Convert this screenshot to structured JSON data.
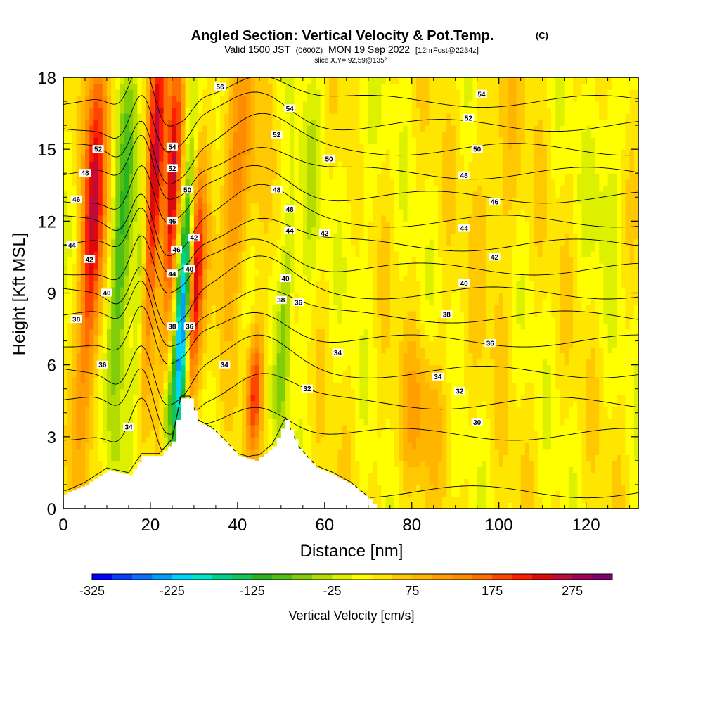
{
  "chart_data": {
    "type": "heatmap",
    "title": "Angled Section: Vertical Velocity & Pot.Temp.",
    "title_units": "(C)",
    "valid_prefix": "Valid 1500 JST",
    "valid_utc": "(0600Z)",
    "valid_date": "MON 19 Sep 2022",
    "valid_fcst": "[12hrFcst@2234z]",
    "slice": "slice X,Y= 92,59@135°",
    "xlabel": "Distance [nm]",
    "ylabel": "Height [Kft MSL]",
    "xlim": [
      0,
      132
    ],
    "ylim": [
      0,
      18
    ],
    "x_ticks": [
      "0",
      "20",
      "40",
      "60",
      "80",
      "100",
      "120"
    ],
    "y_ticks": [
      "0",
      "3",
      "6",
      "9",
      "12",
      "15",
      "18"
    ],
    "grid": false,
    "colorbar": {
      "label": "Vertical Velocity [cm/s]",
      "tick_labels": [
        "-325",
        "-225",
        "-125",
        "-25",
        "75",
        "175",
        "275"
      ],
      "min": -325,
      "max": 325,
      "step": 25,
      "colors": [
        "#0000ff",
        "#0a3cff",
        "#0a6eff",
        "#00a0ff",
        "#00d2ff",
        "#00e6c8",
        "#00d28c",
        "#14c35a",
        "#28b41e",
        "#50be14",
        "#82cd0a",
        "#b4dc00",
        "#dcf000",
        "#ffff00",
        "#ffe600",
        "#ffc800",
        "#ffb400",
        "#ffa000",
        "#ff8c00",
        "#ff6e00",
        "#ff4600",
        "#ff1e00",
        "#dc0a0a",
        "#be0a3c",
        "#a0005a",
        "#82006e"
      ]
    },
    "terrain": [
      {
        "x": 0,
        "h": 0.6
      },
      {
        "x": 5,
        "h": 1.0
      },
      {
        "x": 10,
        "h": 1.6
      },
      {
        "x": 15,
        "h": 1.4
      },
      {
        "x": 18,
        "h": 2.2
      },
      {
        "x": 22,
        "h": 2.2
      },
      {
        "x": 25,
        "h": 2.8
      },
      {
        "x": 27,
        "h": 4.6
      },
      {
        "x": 29,
        "h": 4.6
      },
      {
        "x": 31,
        "h": 3.6
      },
      {
        "x": 34,
        "h": 3.3
      },
      {
        "x": 37,
        "h": 2.8
      },
      {
        "x": 40,
        "h": 2.2
      },
      {
        "x": 44,
        "h": 2.0
      },
      {
        "x": 48,
        "h": 2.6
      },
      {
        "x": 51,
        "h": 3.7
      },
      {
        "x": 54,
        "h": 2.5
      },
      {
        "x": 58,
        "h": 1.7
      },
      {
        "x": 62,
        "h": 1.4
      },
      {
        "x": 66,
        "h": 1.0
      },
      {
        "x": 70,
        "h": 0.4
      },
      {
        "x": 72,
        "h": 0
      }
    ],
    "vertical_velocity_features": [
      {
        "x": 7,
        "h": 12,
        "width": 2.5,
        "depth": 8,
        "value": 230
      },
      {
        "x": 21,
        "h": 14,
        "width": 2.2,
        "depth": 7,
        "value": 250
      },
      {
        "x": 25,
        "h": 13,
        "width": 1.8,
        "depth": 6,
        "value": 200
      },
      {
        "x": 30,
        "h": 9,
        "width": 2.0,
        "depth": 5,
        "value": 220
      },
      {
        "x": 44,
        "h": 5,
        "width": 1.8,
        "depth": 2.5,
        "value": 170
      },
      {
        "x": 13,
        "h": 11,
        "width": 2.5,
        "depth": 7,
        "value": -140
      },
      {
        "x": 17.5,
        "h": 9,
        "width": 1.5,
        "depth": 6,
        "value": -120
      },
      {
        "x": 27.5,
        "h": 8,
        "width": 1.6,
        "depth": 6,
        "value": -300
      },
      {
        "x": 24,
        "h": 4,
        "width": 1.5,
        "depth": 2,
        "value": -110
      },
      {
        "x": 51,
        "h": 8,
        "width": 1.6,
        "depth": 6,
        "value": -90
      },
      {
        "x": 56,
        "h": 12,
        "width": 3,
        "depth": 6,
        "value": -40
      },
      {
        "x": 69,
        "h": 15,
        "width": 2.5,
        "depth": 5,
        "value": -35
      },
      {
        "x": 40,
        "h": 14,
        "width": 4,
        "depth": 5,
        "value": 110
      },
      {
        "x": 82,
        "h": 4,
        "width": 6,
        "depth": 3,
        "value": 65
      },
      {
        "x": 100,
        "h": 14,
        "width": 5,
        "depth": 6,
        "value": 40
      },
      {
        "x": 125,
        "h": 15,
        "width": 4,
        "depth": 5,
        "value": -40
      }
    ],
    "pot_temp_contours": {
      "levels": [
        28,
        30,
        32,
        34,
        36,
        38,
        40,
        42,
        44,
        46,
        48,
        50,
        52,
        54,
        56
      ],
      "labels": [
        {
          "text": "56",
          "x": 36,
          "y": 17.6
        },
        {
          "text": "54",
          "x": 96,
          "y": 17.3
        },
        {
          "text": "52",
          "x": 93,
          "y": 16.3
        },
        {
          "text": "50",
          "x": 95,
          "y": 15.0
        },
        {
          "text": "48",
          "x": 92,
          "y": 13.9
        },
        {
          "text": "46",
          "x": 99,
          "y": 12.8
        },
        {
          "text": "44",
          "x": 92,
          "y": 11.7
        },
        {
          "text": "42",
          "x": 99,
          "y": 10.5
        },
        {
          "text": "40",
          "x": 92,
          "y": 9.4
        },
        {
          "text": "38",
          "x": 88,
          "y": 8.1
        },
        {
          "text": "36",
          "x": 98,
          "y": 6.9
        },
        {
          "text": "34",
          "x": 86,
          "y": 5.5
        },
        {
          "text": "32",
          "x": 91,
          "y": 4.9
        },
        {
          "text": "30",
          "x": 95,
          "y": 3.6
        },
        {
          "text": "34",
          "x": 37,
          "y": 6.0
        },
        {
          "text": "32",
          "x": 56,
          "y": 5.0
        },
        {
          "text": "34",
          "x": 63,
          "y": 6.5
        },
        {
          "text": "36",
          "x": 9,
          "y": 6.0
        },
        {
          "text": "38",
          "x": 3,
          "y": 7.9
        },
        {
          "text": "40",
          "x": 10,
          "y": 9.0
        },
        {
          "text": "42",
          "x": 6,
          "y": 10.4
        },
        {
          "text": "44",
          "x": 2,
          "y": 11.0
        },
        {
          "text": "46",
          "x": 3,
          "y": 12.9
        },
        {
          "text": "48",
          "x": 5,
          "y": 14.0
        },
        {
          "text": "52",
          "x": 8,
          "y": 15.0
        },
        {
          "text": "54",
          "x": 25,
          "y": 15.1
        },
        {
          "text": "52",
          "x": 25,
          "y": 14.2
        },
        {
          "text": "50",
          "x": 28.5,
          "y": 13.3
        },
        {
          "text": "46",
          "x": 25,
          "y": 12.0
        },
        {
          "text": "46",
          "x": 26,
          "y": 10.8
        },
        {
          "text": "44",
          "x": 25,
          "y": 9.8
        },
        {
          "text": "42",
          "x": 30,
          "y": 11.3
        },
        {
          "text": "40",
          "x": 29,
          "y": 10.0
        },
        {
          "text": "36",
          "x": 29,
          "y": 7.6
        },
        {
          "text": "38",
          "x": 25,
          "y": 7.6
        },
        {
          "text": "34",
          "x": 15,
          "y": 3.4
        },
        {
          "text": "54",
          "x": 52,
          "y": 16.7
        },
        {
          "text": "52",
          "x": 49,
          "y": 15.6
        },
        {
          "text": "50",
          "x": 61,
          "y": 14.6
        },
        {
          "text": "48",
          "x": 49,
          "y": 13.3
        },
        {
          "text": "48",
          "x": 52,
          "y": 12.5
        },
        {
          "text": "44",
          "x": 52,
          "y": 11.6
        },
        {
          "text": "42",
          "x": 60,
          "y": 11.5
        },
        {
          "text": "40",
          "x": 51,
          "y": 9.6
        },
        {
          "text": "38",
          "x": 50,
          "y": 8.7
        },
        {
          "text": "36",
          "x": 54,
          "y": 8.6
        }
      ]
    }
  }
}
